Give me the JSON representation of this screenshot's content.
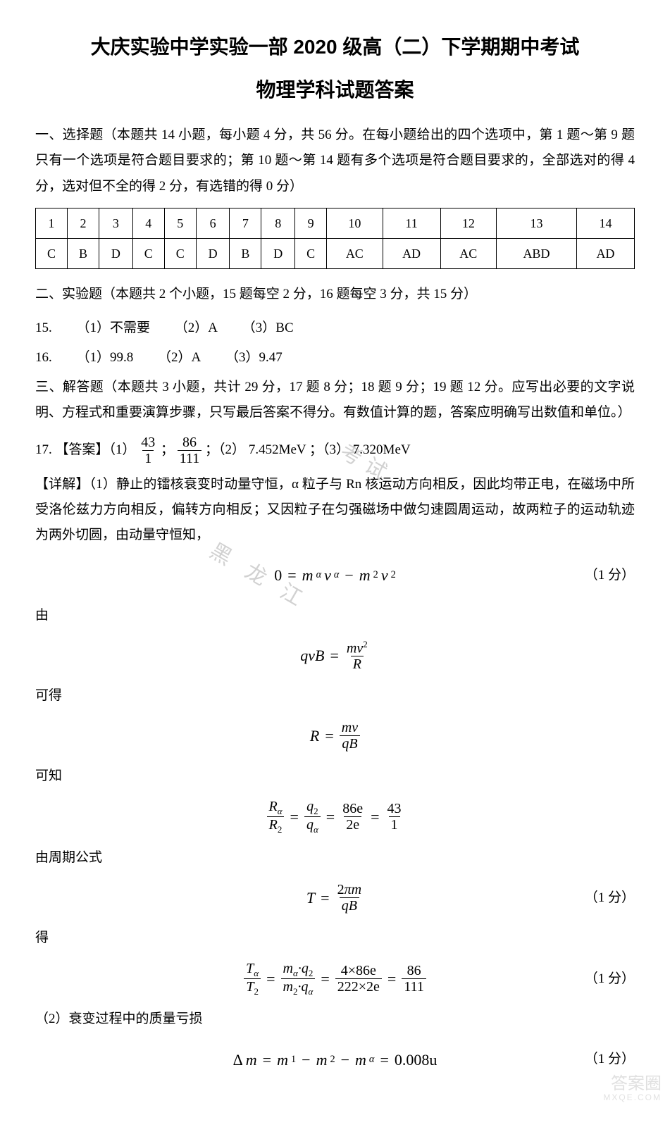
{
  "header": {
    "line1": "大庆实验中学实验一部 2020 级高（二）下学期期中考试",
    "line2": "物理学科试题答案"
  },
  "section1": {
    "intro": "一、选择题（本题共 14 小题，每小题 4 分，共 56 分。在每小题给出的四个选项中，第 1 题～第 9 题只有一个选项是符合题目要求的；第 10 题～第 14 题有多个选项是符合题目要求的，全部选对的得 4 分，选对但不全的得 2 分，有选错的得 0 分）",
    "nums": [
      "1",
      "2",
      "3",
      "4",
      "5",
      "6",
      "7",
      "8",
      "9",
      "10",
      "11",
      "12",
      "13",
      "14"
    ],
    "answers": [
      "C",
      "B",
      "D",
      "C",
      "C",
      "D",
      "B",
      "D",
      "C",
      "AC",
      "AD",
      "AC",
      "ABD",
      "AD"
    ]
  },
  "section2": {
    "intro": "二、实验题（本题共 2 个小题，15 题每空 2 分，16 题每空 3 分，共 15 分）",
    "q15": {
      "label": "15.",
      "p1l": "（1）",
      "p1": "不需要",
      "p2l": "（2）",
      "p2": "A",
      "p3l": "（3）",
      "p3": "BC"
    },
    "q16": {
      "label": "16.",
      "p1l": "（1）",
      "p1": "99.8",
      "p2l": "（2）",
      "p2": "A",
      "p3l": "（3）",
      "p3": "9.47"
    }
  },
  "section3": {
    "intro": "三、解答题（本题共 3 小题，共计 29 分，17 题 8 分；18 题 9 分；19 题 12 分。应写出必要的文字说明、方程式和重要演算步骤，只写最后答案不得分。有数值计算的题，答案应明确写出数值和单位。）",
    "q17": {
      "label": "17. 【答案】（1）",
      "frac1_num": "43",
      "frac1_den": "1",
      "sep1": "；",
      "frac2_num": "86",
      "frac2_den": "111",
      "sep2": "  ；（2）",
      "ans2": "7.452MeV",
      "sep3": "；（3）",
      "ans3": "7.320MeV"
    },
    "detail_label": "【详解】",
    "detail_text": "（1）静止的镭核衰变时动量守恒，α 粒子与 Rn 核运动方向相反，因此均带正电，在磁场中所受洛伦兹力方向相反，偏转方向相反；又因粒子在匀强磁场中做匀速圆周运动，故两粒子的运动轨迹为两外切圆，由动量守恒知，",
    "labels": {
      "you": "由",
      "kede": "可得",
      "kezhi": "可知",
      "zhouqi": "由周期公式",
      "de": "得",
      "part2": "（2）衰变过程中的质量亏损"
    },
    "formulas": {
      "f1": {
        "lhs": "0",
        "score": "（1 分）"
      },
      "f5_score": "（1 分）",
      "f7_score": "（1 分）",
      "f8": {
        "rhs": "0.008u",
        "score": "（1 分）"
      },
      "f4_eq": "43",
      "f4_eq_b": "1",
      "f4_a": "86e",
      "f4_b": "2e",
      "f6_a": "4×86e",
      "f6_b": "222×2e",
      "f6_c": "86",
      "f6_d": "111"
    }
  },
  "watermark": {
    "wm1": "考试",
    "wm2": "黑 龙 江",
    "corner1": "答案圈",
    "corner2": "MXQE.COM"
  }
}
